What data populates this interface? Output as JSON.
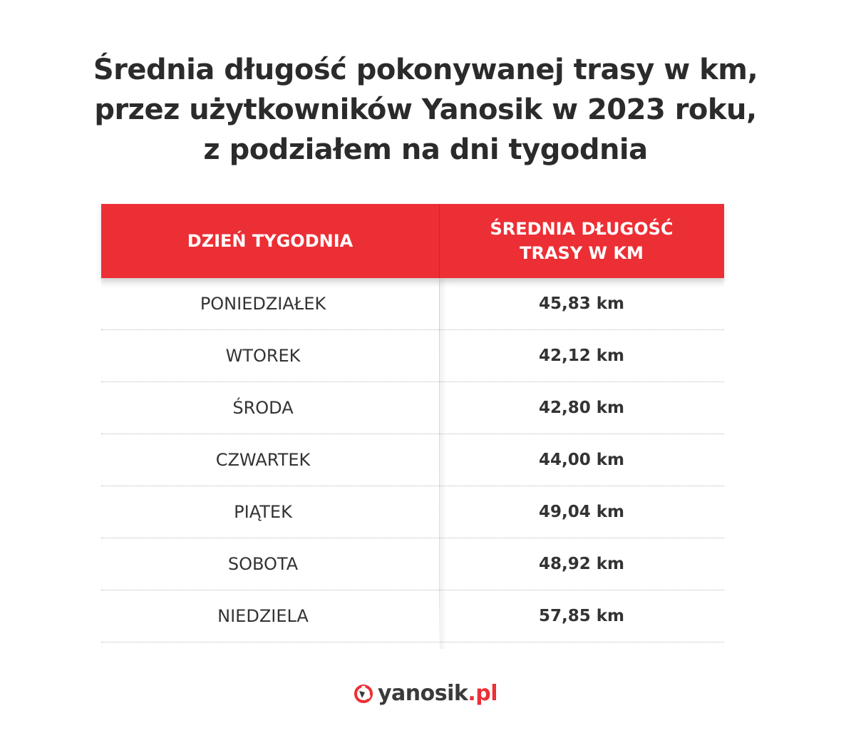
{
  "title": {
    "line1": "Średnia długość pokonywanej trasy w km,",
    "line2": "przez użytkowników Yanosik w 2023 roku,",
    "line3": "z podziałem na dni tygodnia"
  },
  "table": {
    "header_day": "DZIEŃ TYGODNIA",
    "header_avg_line1": "ŚREDNIA DŁUGOŚĆ",
    "header_avg_line2": "TRASY W KM",
    "accent_color": "#ec2f35"
  },
  "chart_data": {
    "type": "table",
    "columns": [
      "DZIEŃ TYGODNIA",
      "ŚREDNIA DŁUGOŚĆ TRASY W KM"
    ],
    "rows": [
      {
        "day": "PONIEDZIAŁEK",
        "value": 45.83,
        "display": "45,83 km"
      },
      {
        "day": "WTOREK",
        "value": 42.12,
        "display": "42,12 km"
      },
      {
        "day": "ŚRODA",
        "value": 42.8,
        "display": "42,80 km"
      },
      {
        "day": "CZWARTEK",
        "value": 44.0,
        "display": "44,00 km"
      },
      {
        "day": "PIĄTEK",
        "value": 49.04,
        "display": "49,04 km"
      },
      {
        "day": "SOBOTA",
        "value": 48.92,
        "display": "48,92 km"
      },
      {
        "day": "NIEDZIELA",
        "value": 57.85,
        "display": "57,85 km"
      }
    ]
  },
  "logo": {
    "icon": "yanosik-logo-icon",
    "brand": "yanosik",
    "dot": ".",
    "tld": "pl"
  }
}
